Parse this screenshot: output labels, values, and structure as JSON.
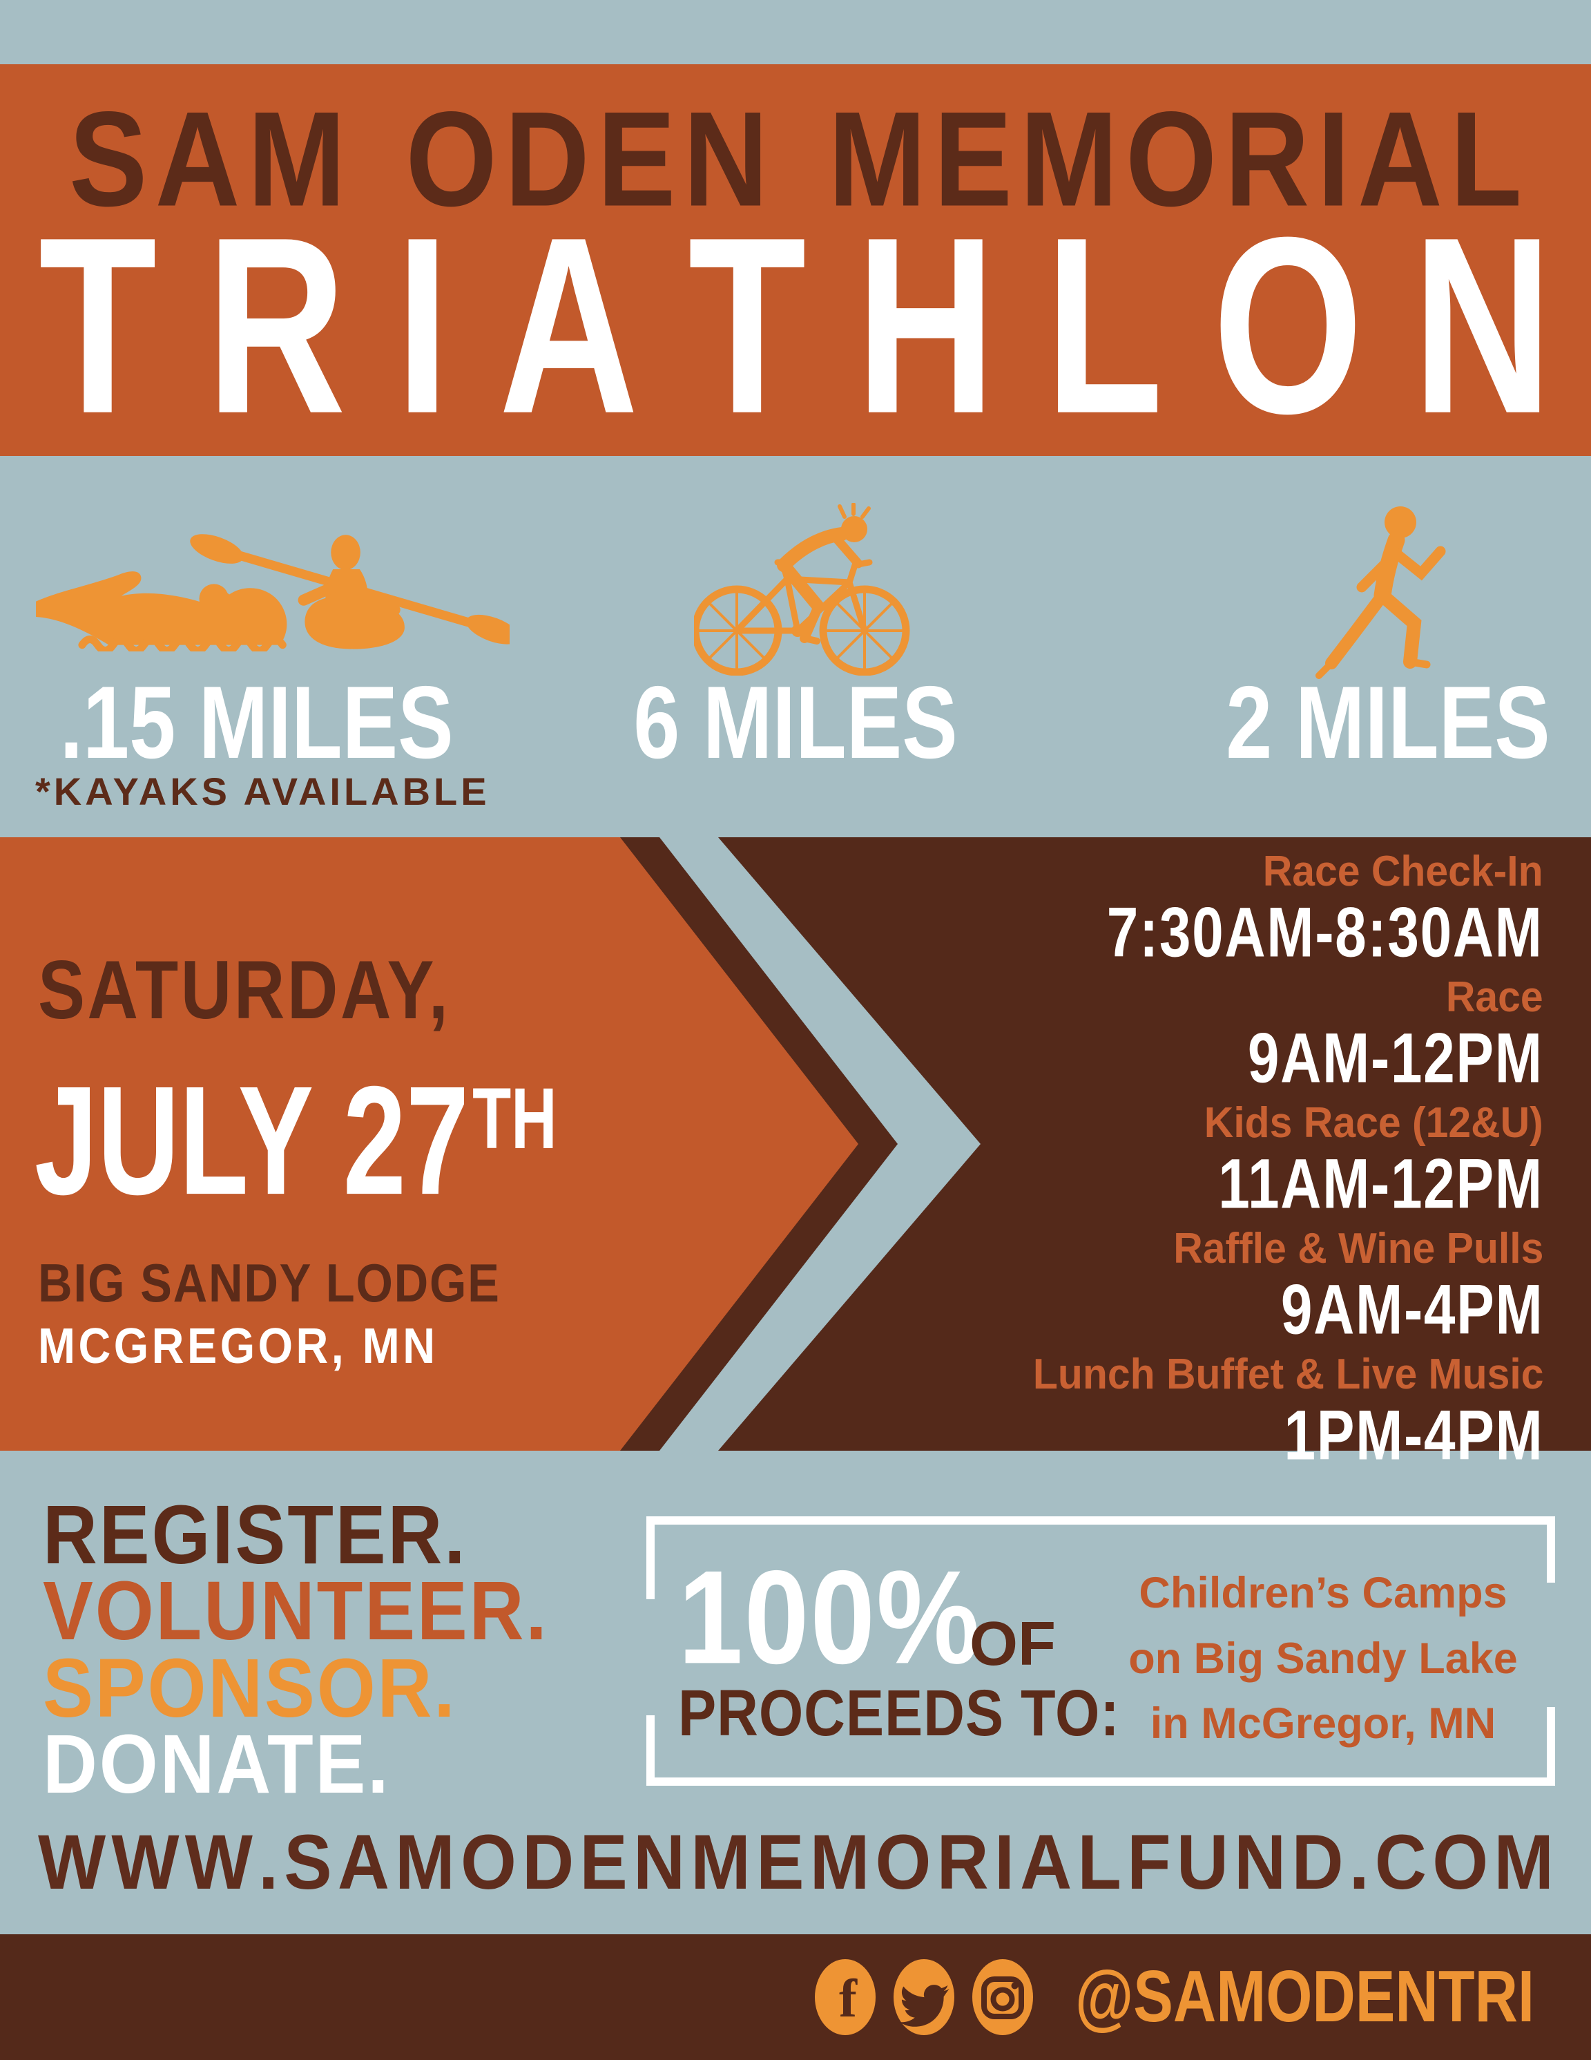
{
  "header": {
    "supertitle": "SAM ODEN MEMORIAL",
    "title": "TRIATHLON"
  },
  "events": [
    {
      "icon": "swim-kayak-icon",
      "distance": ".15 MILES",
      "note": "*KAYAKS AVAILABLE"
    },
    {
      "icon": "mountain-bike-icon",
      "distance": "6 MILES"
    },
    {
      "icon": "runner-icon",
      "distance": "2 MILES"
    }
  ],
  "when_where": {
    "day": "SATURDAY,",
    "date": "JULY 27",
    "date_suffix": "TH",
    "venue": "BIG SANDY LODGE",
    "city": "MCGREGOR, MN"
  },
  "schedule": [
    {
      "label": "Race Check-In",
      "time": "7:30AM-8:30AM"
    },
    {
      "label": "Race",
      "time": "9AM-12PM"
    },
    {
      "label": "Kids Race (12&U)",
      "time": "11AM-12PM"
    },
    {
      "label": "Raffle & Wine Pulls",
      "time": "9AM-4PM"
    },
    {
      "label": "Lunch Buffet & Live Music",
      "time": "1PM-4PM"
    }
  ],
  "cta": {
    "items": [
      "REGISTER.",
      "VOLUNTEER.",
      "SPONSOR.",
      "DONATE."
    ]
  },
  "proceeds": {
    "percent": "100%",
    "of_label": "OF",
    "to_label": "PROCEEDS TO:",
    "lines": [
      "Children’s Camps",
      "on Big Sandy Lake",
      "in McGregor, MN"
    ]
  },
  "website": "WWW.SAMODENMEMORIALFUND.COM",
  "footer": {
    "handle": "@SAMODENTRI",
    "icons": [
      "facebook-icon",
      "twitter-icon",
      "instagram-icon"
    ]
  },
  "colors": {
    "blue": "#a6bec4",
    "orange": "#c2592b",
    "obright": "#ee9434",
    "brown": "#54291a",
    "browntext": "#5c2b19",
    "schedlabel": "#c96133",
    "urlbrown": "#5f2d1d",
    "white": "#ffffff"
  }
}
